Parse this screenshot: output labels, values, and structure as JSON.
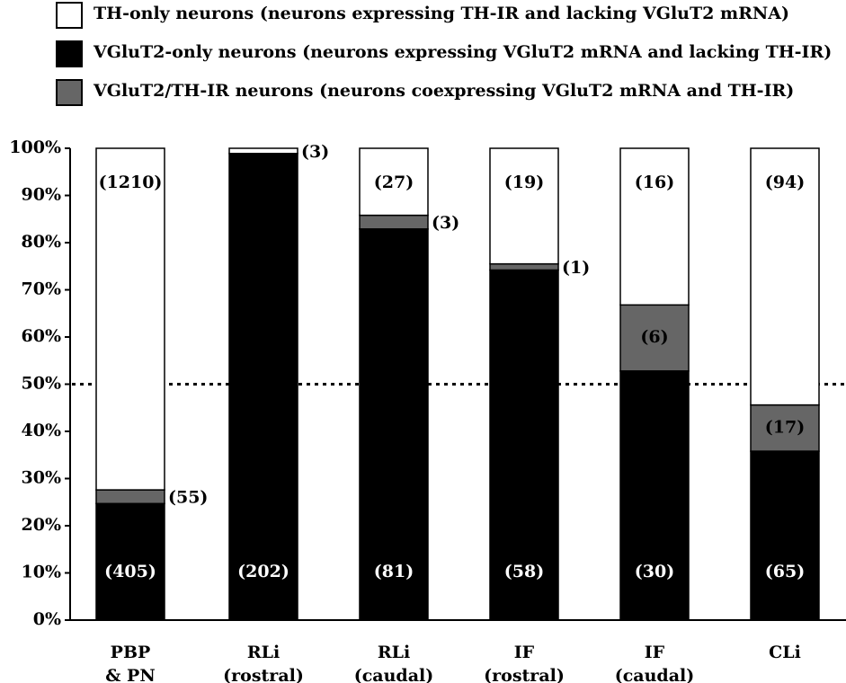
{
  "legend": [
    {
      "label": "TH-only neurons (neurons expressing TH-IR and lacking VGluT2 mRNA)",
      "color": "#ffffff"
    },
    {
      "label": "VGluT2-only neurons (neurons expressing VGluT2 mRNA and lacking TH-IR)",
      "color": "#000000"
    },
    {
      "label": "VGluT2/TH-IR neurons (neurons coexpressing VGluT2 mRNA and TH-IR)",
      "color": "#666666"
    }
  ],
  "chart_data": {
    "type": "bar",
    "stacked": true,
    "categories": [
      [
        "PBP",
        "& PN"
      ],
      [
        "RLi",
        "(rostral)"
      ],
      [
        "RLi",
        "(caudal)"
      ],
      [
        "IF",
        "(rostral)"
      ],
      [
        "IF",
        "(caudal)"
      ],
      [
        "CLi"
      ]
    ],
    "series": [
      {
        "name": "VGluT2-only neurons (neurons expressing VGluT2 mRNA and lacking TH-IR)",
        "color": "#000000",
        "values": [
          24.7,
          98.9,
          82.9,
          74.2,
          52.8,
          35.8
        ],
        "labels": [
          "(405)",
          "(202)",
          "(81)",
          "(58)",
          "(30)",
          "(65)"
        ]
      },
      {
        "name": "VGluT2/TH-IR neurons (neurons coexpressing VGluT2 mRNA and TH-IR)",
        "color": "#666666",
        "values": [
          2.9,
          0,
          2.9,
          1.3,
          14.0,
          9.8
        ],
        "labels": [
          "(55)",
          "",
          "(3)",
          "(1)",
          "(6)",
          "(17)"
        ]
      },
      {
        "name": "TH-only neurons (neurons expressing TH-IR and lacking VGluT2 mRNA)",
        "color": "#ffffff",
        "values": [
          72.4,
          1.1,
          14.2,
          24.5,
          33.2,
          54.4
        ],
        "labels": [
          "(1210)",
          "(3)",
          "(27)",
          "(19)",
          "(16)",
          "(94)"
        ]
      }
    ],
    "yticks": [
      "0%",
      "10%",
      "20%",
      "30%",
      "40%",
      "50%",
      "60%",
      "70%",
      "80%",
      "90%",
      "100%"
    ],
    "ylim": [
      0,
      100
    ],
    "reference_line": 50,
    "grid": false
  }
}
